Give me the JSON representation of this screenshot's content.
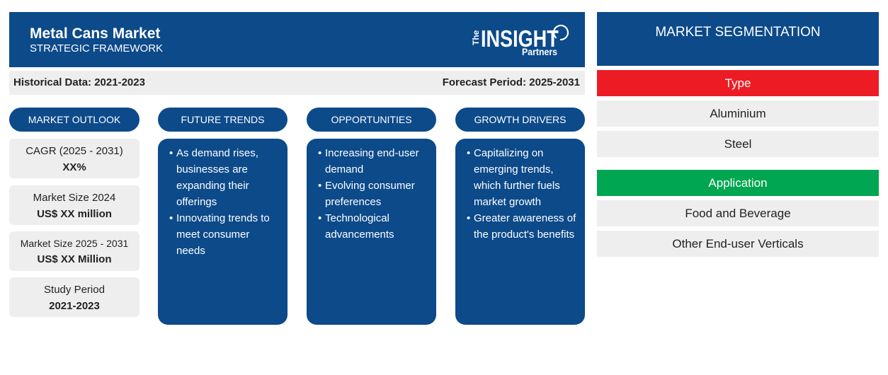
{
  "header": {
    "title": "Metal Cans Market",
    "subtitle": "STRATEGIC FRAMEWORK",
    "logo": {
      "the": "The",
      "wordmark": "INSIGHT",
      "partners": "Partners"
    }
  },
  "periods": {
    "historical": "Historical Data: 2021-2023",
    "forecast": "Forecast Period: 2025-2031"
  },
  "market_outlook": {
    "heading": "MARKET OUTLOOK",
    "items": [
      {
        "label": "CAGR (2025 - 2031)",
        "value": "XX%"
      },
      {
        "label": "Market Size 2024",
        "value": "US$ XX million"
      },
      {
        "label": "Market Size 2025 - 2031",
        "value": "US$ XX Million"
      },
      {
        "label": "Study Period",
        "value": "2021-2023"
      }
    ]
  },
  "future_trends": {
    "heading": "FUTURE TRENDS",
    "bullets": [
      "As demand rises, businesses are expanding their offerings",
      "Innovating trends to meet consumer needs"
    ]
  },
  "opportunities": {
    "heading": "OPPORTUNITIES",
    "bullets": [
      "Increasing end-user demand",
      "Evolving consumer preferences",
      "Technological advancements"
    ]
  },
  "growth_drivers": {
    "heading": "GROWTH DRIVERS",
    "bullets": [
      "Capitalizing on emerging trends, which further fuels market growth",
      "Greater awareness of the product's benefits"
    ]
  },
  "segmentation": {
    "title": "MARKET SEGMENTATION",
    "groups": [
      {
        "name": "Type",
        "color": "#ed1c24",
        "items": [
          "Aluminium",
          "Steel"
        ]
      },
      {
        "name": "Application",
        "color": "#00a651",
        "items": [
          "Food and Beverage",
          "Other End-user Verticals"
        ]
      }
    ]
  },
  "colors": {
    "primary": "#0c4a8a",
    "panel": "#eeeeee",
    "text": "#222222"
  }
}
